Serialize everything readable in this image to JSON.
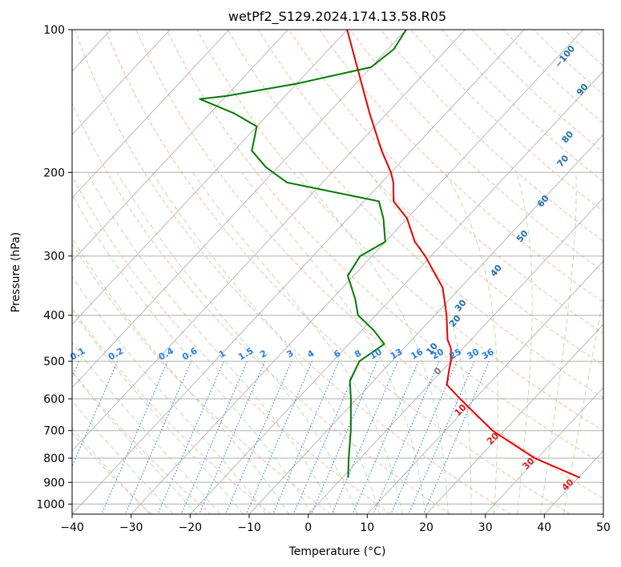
{
  "chart_data": {
    "type": "line",
    "title": "wetPf2_S129.2024.174.13.58.R05",
    "xlabel": "Temperature (°C)",
    "ylabel": "Pressure (hPa)",
    "xlim": [
      -40,
      50
    ],
    "ylim": [
      1050,
      100
    ],
    "y_scale": "log",
    "grid": true,
    "x_ticks": [
      -40,
      -30,
      -20,
      -10,
      0,
      10,
      20,
      30,
      40,
      50
    ],
    "x_tick_labels": [
      "−40",
      "−30",
      "−20",
      "−10",
      "0",
      "10",
      "20",
      "30",
      "40",
      "50"
    ],
    "y_ticks": [
      1000,
      900,
      800,
      700,
      600,
      500,
      400,
      300,
      200,
      100
    ],
    "y_tick_labels": [
      "1000",
      "900",
      "800",
      "700",
      "600",
      "500",
      "400",
      "300",
      "200",
      "100"
    ],
    "skew_deg_per_decade": 75,
    "colors": {
      "temperature": "#e60000",
      "dewpoint": "#007a00",
      "isotherm": "#9a9a9a",
      "dry_adiabat": "#f7a98c",
      "moist_adiabat": "#9fd19a",
      "mixing_ratio": "#2a7fe6",
      "theta_label": "#1f6fa8",
      "temp_label": "#d62020",
      "zero_label": "#777777"
    },
    "series": [
      {
        "key": "temperature",
        "pressure": [
          880,
          800,
          700,
          600,
          560,
          520,
          500,
          470,
          450,
          400,
          350,
          300,
          280,
          250,
          230,
          210,
          200,
          180,
          150,
          130,
          110,
          100
        ],
        "temperature": [
          40.3,
          29.5,
          18,
          7.5,
          3,
          1,
          0,
          -2,
          -4,
          -8,
          -13,
          -21,
          -25,
          -30,
          -35,
          -38,
          -40,
          -45,
          -53,
          -59,
          -66,
          -70
        ]
      },
      {
        "key": "dewpoint",
        "pressure": [
          880,
          800,
          700,
          600,
          550,
          500,
          460,
          430,
          400,
          370,
          330,
          300,
          280,
          250,
          230,
          225,
          210,
          195,
          180,
          160,
          150,
          140,
          138,
          130,
          120,
          110,
          100
        ],
        "temperature": [
          1,
          -2,
          -6,
          -11,
          -14,
          -15.5,
          -14,
          -18,
          -23,
          -26,
          -31,
          -32,
          -30,
          -34,
          -37.5,
          -42,
          -56,
          -62,
          -67,
          -70,
          -76,
          -84,
          -80,
          -70,
          -60,
          -59,
          -60
        ]
      }
    ],
    "theta_labels": [
      {
        "text": "−100",
        "t": -28.2,
        "p": 115
      },
      {
        "text": "90",
        "t": -20,
        "p": 135
      },
      {
        "text": "80",
        "t": -15,
        "p": 170
      },
      {
        "text": "70",
        "t": -12,
        "p": 191
      },
      {
        "text": "60",
        "t": -9,
        "p": 232
      },
      {
        "text": "50",
        "t": -7,
        "p": 275
      },
      {
        "text": "40",
        "t": -6,
        "p": 325
      },
      {
        "text": "30",
        "t": -6.5,
        "p": 385
      },
      {
        "text": "20",
        "t": -5,
        "p": 415
      },
      {
        "text": "10",
        "t": -4.5,
        "p": 475
      }
    ],
    "temp_labels": [
      {
        "text": "0",
        "t": 0,
        "p": 530
      },
      {
        "text": "10",
        "t": 10,
        "p": 640
      },
      {
        "text": "20",
        "t": 20,
        "p": 735
      },
      {
        "text": "30",
        "t": 30,
        "p": 830
      },
      {
        "text": "40",
        "t": 40,
        "p": 920
      }
    ],
    "mixing_ratio": {
      "values": [
        "0.1",
        "0.2",
        "0.4",
        "0.6",
        "1",
        "1.5",
        "2",
        "3",
        "4",
        "6",
        "8",
        "10",
        "13",
        "16",
        "20",
        "25",
        "30",
        "36"
      ],
      "temp_at_500": [
        -63,
        -56.5,
        -48,
        -44,
        -38.5,
        -34.5,
        -31.5,
        -27,
        -23.5,
        -19,
        -15.5,
        -12.5,
        -9,
        -5.5,
        -2,
        1,
        4,
        6.5
      ]
    }
  }
}
